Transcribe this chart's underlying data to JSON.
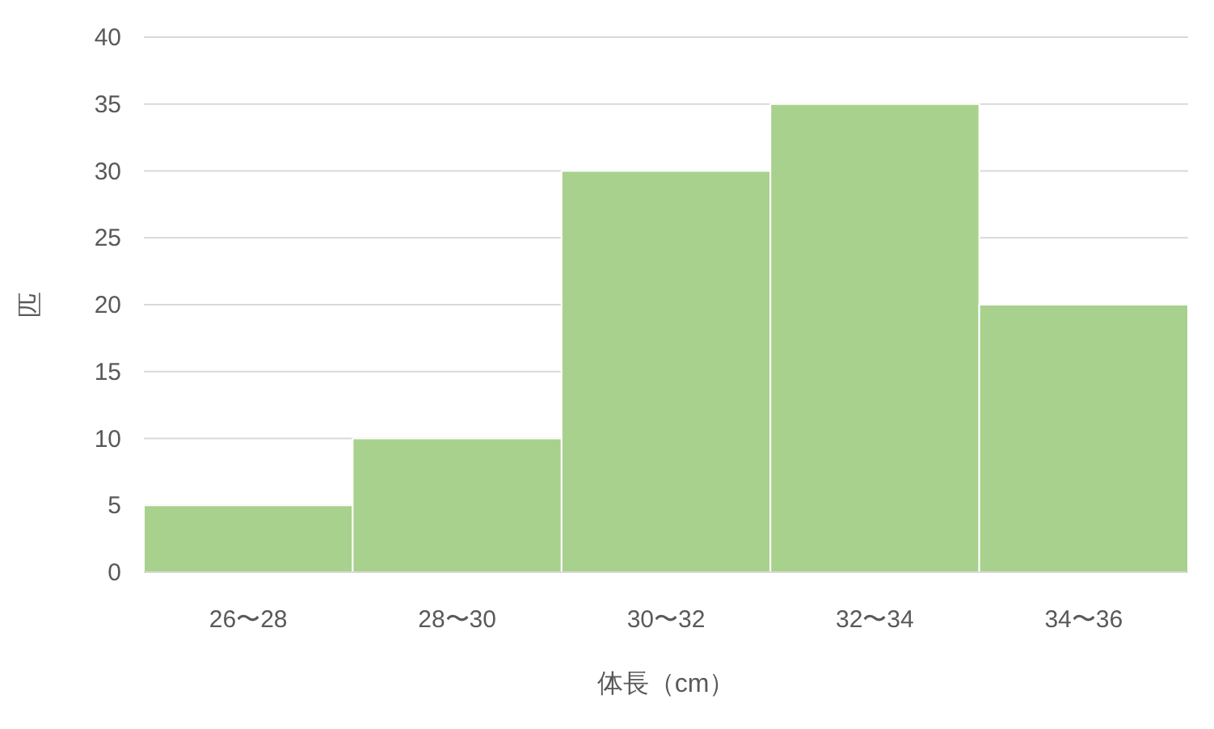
{
  "chart_data": {
    "type": "bar",
    "xlabel": "体長（cm）",
    "ylabel": "匹",
    "categories": [
      "26〜28",
      "28〜30",
      "30〜32",
      "32〜34",
      "34〜36"
    ],
    "values": [
      5,
      10,
      30,
      35,
      20
    ],
    "color": "#a9d18e",
    "ylim": [
      0,
      40
    ],
    "yticks": [
      0,
      5,
      10,
      15,
      20,
      25,
      30,
      35,
      40
    ],
    "grid": "y"
  }
}
